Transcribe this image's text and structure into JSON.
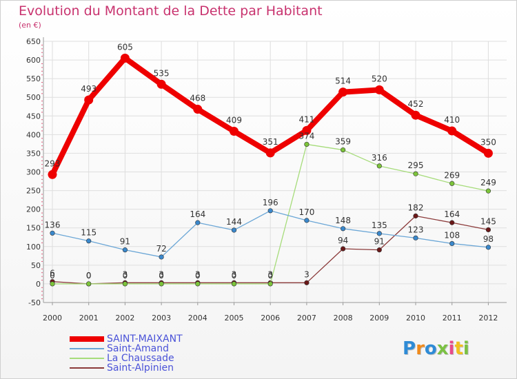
{
  "header": {
    "title": "Evolution du Montant de la Dette par Habitant",
    "subtitle": "(en €)"
  },
  "logo": {
    "text": "Proxiti",
    "colors": [
      "#2e8bd6",
      "#f08a1c",
      "#2e8bd6",
      "#7bc143",
      "#e84b8a",
      "#f2c01e",
      "#7bc143"
    ]
  },
  "chart_data": {
    "type": "line",
    "x": [
      "2000",
      "2001",
      "2002",
      "2003",
      "2004",
      "2005",
      "2006",
      "2007",
      "2008",
      "2009",
      "2010",
      "2011",
      "2012"
    ],
    "ylim": [
      -50,
      650
    ],
    "yticks": [
      "-50",
      "0",
      "50",
      "100",
      "150",
      "200",
      "250",
      "300",
      "350",
      "400",
      "450",
      "500",
      "550",
      "600",
      "650"
    ],
    "grid": true,
    "legend_position": "bottom-left",
    "series": [
      {
        "name": "SAINT-MAIXANT",
        "color": "#ee0000",
        "values": [
          293,
          493,
          605,
          535,
          468,
          409,
          351,
          411,
          514,
          520,
          452,
          410,
          350
        ],
        "labels": [
          "293",
          "493",
          "605",
          "535",
          "468",
          "409",
          "351",
          "411",
          "514",
          "520",
          "452",
          "410",
          "350"
        ]
      },
      {
        "name": "Saint-Amand",
        "color": "#6aa6d6",
        "marker": "#3a88cc",
        "values": [
          136,
          115,
          91,
          72,
          164,
          144,
          196,
          170,
          148,
          135,
          123,
          108,
          98
        ],
        "labels": [
          "136",
          "115",
          "91",
          "72",
          "164",
          "144",
          "196",
          "170",
          "148",
          "135",
          "123",
          "108",
          "98"
        ]
      },
      {
        "name": "La Chaussade",
        "color": "#a6dc7a",
        "marker": "#7cc43a",
        "values": [
          0,
          0,
          0,
          0,
          0,
          0,
          0,
          374,
          359,
          316,
          295,
          269,
          249
        ],
        "labels": [
          "0",
          "0",
          "0",
          "0",
          "0",
          "0",
          "0",
          "374",
          "359",
          "316",
          "295",
          "269",
          "249"
        ]
      },
      {
        "name": "Saint-Alpinien",
        "color": "#8b3a3a",
        "marker": "#6b1818",
        "values": [
          6,
          0,
          3,
          3,
          3,
          3,
          3,
          3,
          94,
          91,
          182,
          164,
          145
        ],
        "labels": [
          "6",
          "0",
          "3",
          "3",
          "3",
          "3",
          "3",
          "3",
          "94",
          "91",
          "182",
          "164",
          "145"
        ]
      }
    ]
  }
}
